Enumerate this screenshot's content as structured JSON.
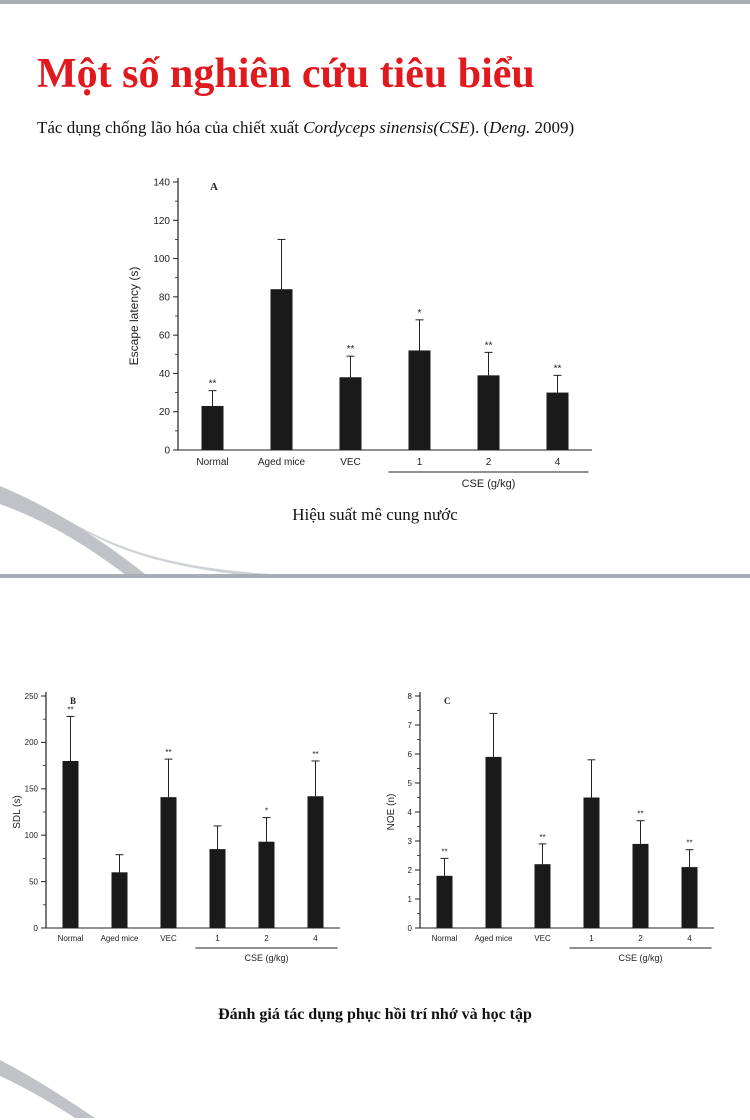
{
  "slide": {
    "title": "Một số nghiên cứu tiêu biểu",
    "subtitle_prefix": "Tác dụng chống lão hóa của chiết xuất ",
    "subtitle_italic": "Cordyceps sinensis(CSE",
    "subtitle_mid": "). (",
    "subtitle_author": "Deng.",
    "subtitle_year": " 2009)",
    "caption_top": "Hiệu suất mê cung nước",
    "caption_bottom": "Đánh giá tác dụng phục hồi trí nhớ và học tập"
  },
  "colors": {
    "title": "#e0191e",
    "bar": "#1a1a1a",
    "divider": "#a9adb4"
  },
  "chart_data": [
    {
      "type": "bar",
      "panel_label": "A",
      "categories": [
        "Normal",
        "Aged mice",
        "VEC",
        "1",
        "2",
        "4"
      ],
      "values": [
        23,
        84,
        38,
        52,
        39,
        30
      ],
      "errors": [
        8,
        26,
        11,
        16,
        12,
        9
      ],
      "significance": [
        "**",
        "",
        "**",
        "*",
        "**",
        "**"
      ],
      "ylabel": "Escape latency (s)",
      "ylim": [
        0,
        140
      ],
      "yticks": [
        0,
        20,
        40,
        60,
        80,
        100,
        120,
        140
      ],
      "group_label": "CSE (g/kg)"
    },
    {
      "type": "bar",
      "panel_label": "B",
      "categories": [
        "Normal",
        "Aged mice",
        "VEC",
        "1",
        "2",
        "4"
      ],
      "values": [
        180,
        60,
        141,
        85,
        93,
        142
      ],
      "errors": [
        48,
        19,
        41,
        25,
        26,
        38
      ],
      "significance": [
        "**",
        "",
        "**",
        "",
        "*",
        "**"
      ],
      "ylabel": "SDL (s)",
      "ylim": [
        0,
        250
      ],
      "yticks": [
        0,
        50,
        100,
        150,
        200,
        250
      ],
      "group_label": "CSE (g/kg)"
    },
    {
      "type": "bar",
      "panel_label": "C",
      "categories": [
        "Normal",
        "Aged mice",
        "VEC",
        "1",
        "2",
        "4"
      ],
      "values": [
        1.8,
        5.9,
        2.2,
        4.5,
        2.9,
        2.1
      ],
      "errors": [
        0.6,
        1.5,
        0.7,
        1.3,
        0.8,
        0.6
      ],
      "significance": [
        "**",
        "",
        "**",
        "",
        "**",
        "**"
      ],
      "ylabel": "NOE (n)",
      "ylim": [
        0,
        8
      ],
      "yticks": [
        0,
        1,
        2,
        3,
        4,
        5,
        6,
        7,
        8
      ],
      "group_label": "CSE (g/kg)"
    }
  ]
}
